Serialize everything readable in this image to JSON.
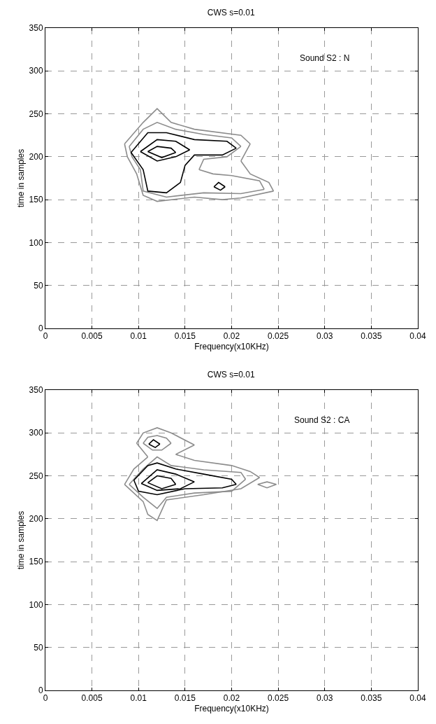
{
  "chart_data": [
    {
      "type": "line",
      "title": "CWS s=0.01",
      "xlabel": "Frequency(x10KHz)",
      "ylabel": "time in samples",
      "annotations": [
        "Sound S2 : N"
      ],
      "xlim": [
        0,
        0.04
      ],
      "ylim": [
        0,
        350
      ],
      "xticks": [
        0,
        0.005,
        0.01,
        0.015,
        0.02,
        0.025,
        0.03,
        0.035,
        0.04
      ],
      "yticks": [
        0,
        50,
        100,
        150,
        200,
        250,
        300,
        350
      ],
      "grid": true,
      "series": [
        {
          "color": "#8c8c8c",
          "x": [
            0.0085,
            0.0105,
            0.012,
            0.0135,
            0.016,
            0.021,
            0.022
          ],
          "values": [
            215,
            240,
            256,
            240,
            232,
            225,
            215
          ]
        },
        {
          "color": "#8c8c8c",
          "x": [
            0.022,
            0.021
          ],
          "values": [
            215,
            195
          ]
        },
        {
          "color": "#8c8c8c",
          "x": [
            0.021,
            0.022,
            0.024,
            0.0245
          ],
          "values": [
            195,
            180,
            170,
            160
          ]
        },
        {
          "color": "#8c8c8c",
          "x": [
            0.0245,
            0.021,
            0.019,
            0.016,
            0.012,
            0.0105,
            0.0098,
            0.0088,
            0.0085
          ],
          "values": [
            160,
            152,
            150,
            153,
            148,
            155,
            180,
            200,
            215
          ]
        },
        {
          "color": "#8c8c8c",
          "x": [
            0.009,
            0.0105,
            0.012,
            0.014,
            0.017,
            0.02,
            0.021
          ],
          "values": [
            212,
            232,
            240,
            232,
            226,
            222,
            212
          ]
        },
        {
          "color": "#8c8c8c",
          "x": [
            0.021,
            0.0195,
            0.017,
            0.0165
          ],
          "values": [
            212,
            200,
            197,
            185
          ]
        },
        {
          "color": "#8c8c8c",
          "x": [
            0.0165,
            0.018,
            0.02,
            0.023,
            0.0235
          ],
          "values": [
            185,
            180,
            178,
            172,
            162
          ]
        },
        {
          "color": "#8c8c8c",
          "x": [
            0.0235,
            0.021,
            0.017,
            0.013,
            0.0105,
            0.0102,
            0.0093,
            0.009
          ],
          "values": [
            162,
            157,
            158,
            153,
            160,
            185,
            200,
            212
          ]
        },
        {
          "color": "#000000",
          "x": [
            0.0092,
            0.011,
            0.013,
            0.016,
            0.0195,
            0.0205
          ],
          "values": [
            205,
            228,
            228,
            220,
            218,
            210
          ]
        },
        {
          "color": "#000000",
          "x": [
            0.0205,
            0.019,
            0.016,
            0.015,
            0.0145,
            0.013,
            0.011,
            0.0105,
            0.0092
          ],
          "values": [
            210,
            202,
            202,
            190,
            170,
            158,
            160,
            185,
            205
          ]
        },
        {
          "color": "#000000",
          "x": [
            0.0102,
            0.012,
            0.014,
            0.0155
          ],
          "values": [
            206,
            220,
            218,
            208
          ]
        },
        {
          "color": "#000000",
          "x": [
            0.0155,
            0.014,
            0.012,
            0.0102
          ],
          "values": [
            208,
            200,
            195,
            206
          ]
        },
        {
          "color": "#000000",
          "x": [
            0.011,
            0.012,
            0.0135,
            0.014
          ],
          "values": [
            206,
            212,
            210,
            205
          ]
        },
        {
          "color": "#000000",
          "x": [
            0.014,
            0.0125,
            0.011
          ],
          "values": [
            205,
            199,
            206
          ]
        },
        {
          "color": "#000000",
          "x": [
            0.0181,
            0.0186,
            0.0193
          ],
          "values": [
            165,
            170,
            165
          ]
        },
        {
          "color": "#000000",
          "x": [
            0.0193,
            0.0188,
            0.0181
          ],
          "values": [
            165,
            161,
            165
          ]
        }
      ]
    },
    {
      "type": "line",
      "title": "CWS s=0.01",
      "xlabel": "Frequency(x10KHz)",
      "ylabel": "time in samples",
      "annotations": [
        "Sound S2 : CA"
      ],
      "xlim": [
        0,
        0.04
      ],
      "ylim": [
        0,
        350
      ],
      "xticks": [
        0,
        0.005,
        0.01,
        0.015,
        0.02,
        0.025,
        0.03,
        0.035,
        0.04
      ],
      "yticks": [
        0,
        50,
        100,
        150,
        200,
        250,
        300,
        350
      ],
      "grid": true,
      "series": [
        {
          "color": "#8c8c8c",
          "x": [
            0.0098,
            0.0105,
            0.012,
            0.0135,
            0.016
          ],
          "values": [
            288,
            300,
            306,
            300,
            286
          ]
        },
        {
          "color": "#8c8c8c",
          "x": [
            0.016,
            0.014
          ],
          "values": [
            286,
            275
          ]
        },
        {
          "color": "#8c8c8c",
          "x": [
            0.014,
            0.016,
            0.02,
            0.022,
            0.023
          ],
          "values": [
            275,
            268,
            262,
            255,
            248
          ]
        },
        {
          "color": "#8c8c8c",
          "x": [
            0.023,
            0.021,
            0.017,
            0.013,
            0.012,
            0.011,
            0.0105,
            0.0085
          ],
          "values": [
            248,
            235,
            228,
            222,
            198,
            205,
            220,
            240
          ]
        },
        {
          "color": "#8c8c8c",
          "x": [
            0.0085,
            0.0095,
            0.011
          ],
          "values": [
            240,
            258,
            272
          ]
        },
        {
          "color": "#8c8c8c",
          "x": [
            0.011,
            0.0098
          ],
          "values": [
            272,
            288
          ]
        },
        {
          "color": "#8c8c8c",
          "x": [
            0.0105,
            0.011,
            0.012,
            0.013,
            0.0135
          ],
          "values": [
            288,
            295,
            297,
            294,
            288
          ]
        },
        {
          "color": "#8c8c8c",
          "x": [
            0.0135,
            0.0125,
            0.0115,
            0.0105
          ],
          "values": [
            288,
            280,
            280,
            288
          ]
        },
        {
          "color": "#8c8c8c",
          "x": [
            0.009,
            0.0105,
            0.012,
            0.0135,
            0.017,
            0.021,
            0.0215
          ],
          "values": [
            240,
            258,
            272,
            262,
            257,
            254,
            246
          ]
        },
        {
          "color": "#8c8c8c",
          "x": [
            0.0215,
            0.02,
            0.016,
            0.013,
            0.012,
            0.0105,
            0.009
          ],
          "values": [
            246,
            232,
            230,
            225,
            212,
            225,
            240
          ]
        },
        {
          "color": "#000000",
          "x": [
            0.0095,
            0.011,
            0.012,
            0.014,
            0.017,
            0.02,
            0.0205
          ],
          "values": [
            245,
            262,
            265,
            258,
            252,
            246,
            240
          ]
        },
        {
          "color": "#000000",
          "x": [
            0.0205,
            0.019,
            0.015,
            0.012,
            0.01,
            0.0095
          ],
          "values": [
            240,
            236,
            235,
            228,
            232,
            245
          ]
        },
        {
          "color": "#000000",
          "x": [
            0.0103,
            0.012,
            0.014,
            0.016
          ],
          "values": [
            241,
            257,
            252,
            243
          ]
        },
        {
          "color": "#000000",
          "x": [
            0.016,
            0.0145,
            0.012,
            0.0103
          ],
          "values": [
            243,
            235,
            233,
            241
          ]
        },
        {
          "color": "#000000",
          "x": [
            0.011,
            0.012,
            0.0135,
            0.014
          ],
          "values": [
            242,
            250,
            247,
            240
          ]
        },
        {
          "color": "#000000",
          "x": [
            0.014,
            0.0125,
            0.011
          ],
          "values": [
            240,
            235,
            242
          ]
        },
        {
          "color": "#000000",
          "x": [
            0.0111,
            0.0116,
            0.0123
          ],
          "values": [
            287,
            292,
            287
          ]
        },
        {
          "color": "#000000",
          "x": [
            0.0123,
            0.0118,
            0.0111
          ],
          "values": [
            287,
            283,
            287
          ]
        },
        {
          "color": "#8c8c8c",
          "x": [
            0.0228,
            0.0238,
            0.0248
          ],
          "values": [
            240,
            243,
            240
          ]
        },
        {
          "color": "#8c8c8c",
          "x": [
            0.0248,
            0.0238,
            0.0228
          ],
          "values": [
            240,
            236,
            240
          ]
        }
      ]
    }
  ]
}
